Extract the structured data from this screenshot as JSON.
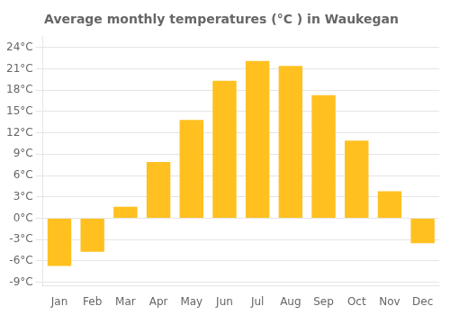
{
  "chart_data": {
    "type": "bar",
    "title": "Average monthly temperatures (°C ) in Waukegan",
    "categories": [
      "Jan",
      "Feb",
      "Mar",
      "Apr",
      "May",
      "Jun",
      "Jul",
      "Aug",
      "Sep",
      "Oct",
      "Nov",
      "Dec"
    ],
    "values": [
      -6.7,
      -4.7,
      1.6,
      7.9,
      13.8,
      19.3,
      22.1,
      21.4,
      17.3,
      10.9,
      3.8,
      -3.5
    ],
    "color": "#FFC020",
    "ylim": [
      -9.5,
      25.5
    ],
    "yticks": [
      {
        "value": -9,
        "label": "-9°C"
      },
      {
        "value": -6,
        "label": "-6°C"
      },
      {
        "value": -3,
        "label": "-3°C"
      },
      {
        "value": 0,
        "label": "0°C"
      },
      {
        "value": 3,
        "label": "3°C"
      },
      {
        "value": 6,
        "label": "6°C"
      },
      {
        "value": 9,
        "label": "9°C"
      },
      {
        "value": 12,
        "label": "12°C"
      },
      {
        "value": 15,
        "label": "15°C"
      },
      {
        "value": 18,
        "label": "18°C"
      },
      {
        "value": 21,
        "label": "21°C"
      },
      {
        "value": 24,
        "label": "24°C"
      }
    ],
    "grid": true
  }
}
